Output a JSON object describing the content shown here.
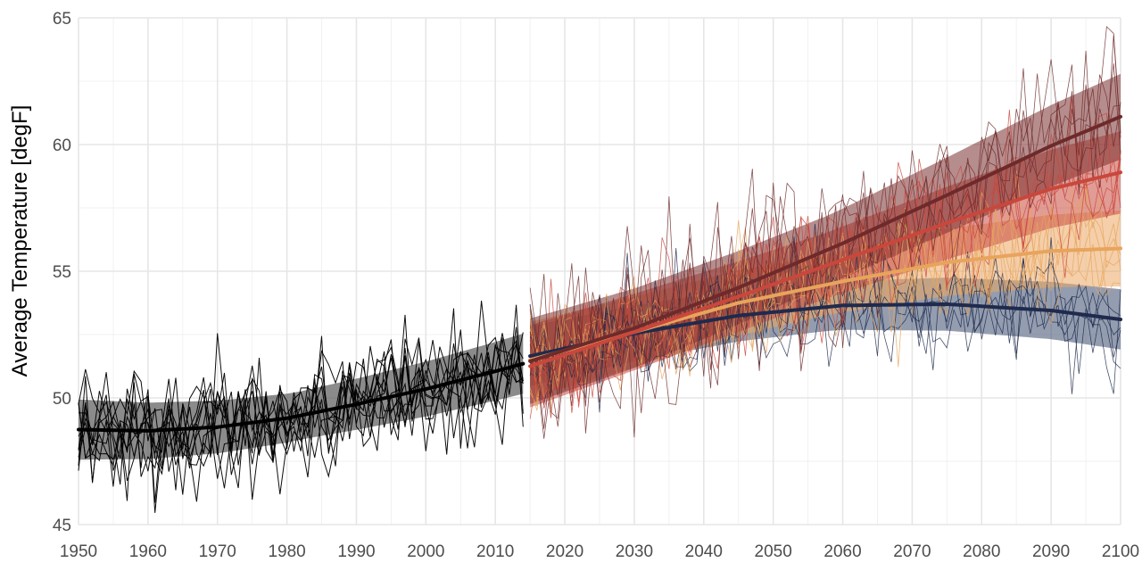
{
  "chart_data": {
    "type": "line",
    "title": "",
    "xlabel": "",
    "ylabel": "Average Temperature [degF]",
    "xlim": [
      1950,
      2100
    ],
    "ylim": [
      45,
      65
    ],
    "x_ticks": [
      1950,
      1960,
      1970,
      1980,
      1990,
      2000,
      2010,
      2020,
      2030,
      2040,
      2050,
      2060,
      2070,
      2080,
      2090,
      2100
    ],
    "y_ticks": [
      45,
      50,
      55,
      60,
      65
    ],
    "grid": true,
    "legend": "none",
    "series": [
      {
        "role": "historical",
        "color": "#000000",
        "x_range": [
          1950,
          2014
        ],
        "ensemble_members": 10,
        "trend": {
          "x": [
            1950,
            1960,
            1970,
            1980,
            1990,
            2000,
            2010,
            2014
          ],
          "y": [
            48.75,
            48.7,
            48.85,
            49.2,
            49.75,
            50.35,
            51.05,
            51.35
          ]
        },
        "band_half_width": 0.95,
        "band_color": "#5a5a5a",
        "noise_sd": 1.15
      },
      {
        "role": "projection",
        "color": "#1f2a4d",
        "x_range": [
          2015,
          2100
        ],
        "ensemble_members": 5,
        "trend": {
          "x": [
            2015,
            2030,
            2045,
            2060,
            2075,
            2090,
            2100
          ],
          "y": [
            51.65,
            52.55,
            53.25,
            53.65,
            53.7,
            53.45,
            53.1
          ]
        },
        "band_half_width": 0.95,
        "band_color": "#3b4d6e",
        "noise_sd": 1.1
      },
      {
        "role": "projection",
        "color": "#e8a45c",
        "x_range": [
          2015,
          2100
        ],
        "ensemble_members": 5,
        "trend": {
          "x": [
            2015,
            2030,
            2045,
            2060,
            2075,
            2090,
            2100
          ],
          "y": [
            51.5,
            52.6,
            53.75,
            54.6,
            55.35,
            55.8,
            55.9
          ]
        },
        "band_half_width": 1.2,
        "band_color": "#eba765",
        "noise_sd": 1.15
      },
      {
        "role": "projection",
        "color": "#c9473c",
        "x_range": [
          2015,
          2100
        ],
        "ensemble_members": 5,
        "trend": {
          "x": [
            2015,
            2030,
            2045,
            2060,
            2075,
            2090,
            2100
          ],
          "y": [
            51.25,
            52.6,
            54.0,
            55.45,
            56.9,
            58.25,
            58.9
          ]
        },
        "band_half_width": 1.3,
        "band_color": "#c94a40",
        "noise_sd": 1.3
      },
      {
        "role": "projection",
        "color": "#6e2a2a",
        "x_range": [
          2015,
          2100
        ],
        "ensemble_members": 5,
        "trend": {
          "x": [
            2015,
            2030,
            2045,
            2060,
            2075,
            2090,
            2100
          ],
          "y": [
            51.45,
            52.75,
            54.35,
            56.1,
            58.0,
            59.95,
            61.1
          ]
        },
        "band_half_width": 1.35,
        "band_color": "#7a3030",
        "noise_sd": 1.6
      }
    ]
  }
}
